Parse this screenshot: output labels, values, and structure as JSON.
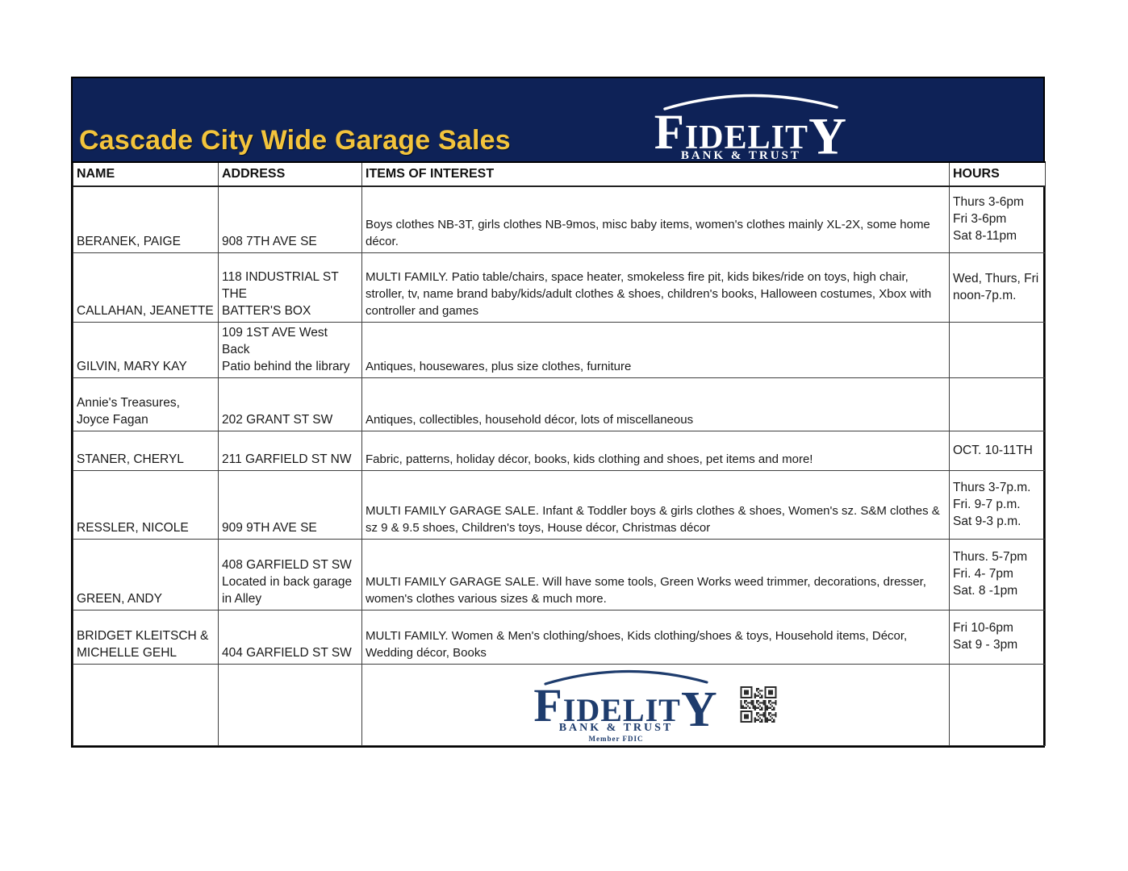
{
  "colors": {
    "brand_navy": "#0e2257",
    "brand_gold": "#f3c43c",
    "footer_logo_navy": "#1e3c6d"
  },
  "header": {
    "title": "Cascade City Wide Garage Sales",
    "logo": {
      "f": "F",
      "mid": "IDELIT",
      "y": "Y",
      "sub": "BANK & TRUST"
    }
  },
  "table": {
    "columns": [
      "NAME",
      "ADDRESS",
      "ITEMS OF INTEREST",
      "HOURS"
    ],
    "rows": [
      {
        "name": "BERANEK, PAIGE",
        "address": "908 7TH AVE SE",
        "items": "Boys clothes NB-3T, girls clothes NB-9mos, misc baby items, women's clothes mainly XL-2X, some home décor.",
        "hours": "Thurs 3-6pm\nFri 3-6pm\nSat 8-11pm"
      },
      {
        "name": "CALLAHAN, JEANETTE",
        "address": "118 INDUSTRIAL ST THE\nBATTER'S BOX",
        "items": "MULTI FAMILY. Patio table/chairs, space heater, smokeless fire pit, kids bikes/ride on toys, high chair, stroller, tv, name brand baby/kids/adult clothes & shoes, children's books, Halloween costumes, Xbox with controller and games",
        "hours": "Wed, Thurs, Fri\nnoon-7p.m."
      },
      {
        "name": "GILVIN, MARY KAY",
        "address": "109 1ST AVE West Back\nPatio behind the library",
        "items": "Antiques, housewares, plus size clothes, furniture",
        "hours": ""
      },
      {
        "name": "Annie's Treasures,\nJoyce Fagan",
        "address": "202 GRANT ST SW",
        "items": "Antiques, collectibles, household décor, lots of miscellaneous",
        "hours": ""
      },
      {
        "name": "STANER, CHERYL",
        "address": "211 GARFIELD ST NW",
        "items": "Fabric, patterns, holiday décor, books, kids clothing and shoes, pet items and more!",
        "hours": "OCT. 10-11TH"
      },
      {
        "name": "RESSLER, NICOLE",
        "address": "909 9TH AVE SE",
        "items": "MULTI FAMILY GARAGE SALE. Infant & Toddler boys & girls clothes & shoes, Women's sz. S&M clothes & sz 9 & 9.5 shoes, Children's toys, House décor, Christmas décor",
        "hours": "Thurs 3-7p.m.\nFri. 9-7 p.m.\nSat 9-3 p.m."
      },
      {
        "name": "GREEN, ANDY",
        "address": " 408 GARFIELD ST SW\nLocated in back garage in Alley",
        "items": "MULTI FAMILY GARAGE SALE. Will have some tools, Green Works weed trimmer, decorations, dresser, women's clothes various sizes & much more.",
        "hours": "Thurs. 5-7pm\nFri. 4- 7pm\nSat. 8 -1pm"
      },
      {
        "name": "BRIDGET KLEITSCH &\nMICHELLE GEHL",
        "address": "404 GARFIELD ST SW",
        "items": "MULTI FAMILY. Women & Men's clothing/shoes, Kids clothing/shoes & toys,  Household items, Décor, Wedding décor, Books",
        "hours": " Fri 10-6pm\nSat 9 - 3pm"
      }
    ]
  },
  "footer": {
    "logo": {
      "f": "F",
      "mid": "IDELIT",
      "y": "Y",
      "sub": "BANK & TRUST",
      "member": "Member FDIC"
    }
  }
}
